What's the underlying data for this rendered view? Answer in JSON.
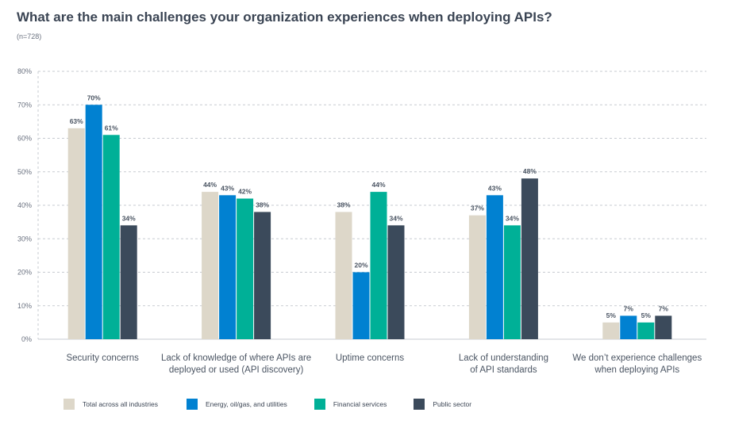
{
  "title": "What are the main challenges your organization experiences when deploying APIs?",
  "subtitle": "(n=728)",
  "chart_data": {
    "type": "bar",
    "title": "What are the main challenges your organization experiences when deploying APIs?",
    "xlabel": "",
    "ylabel": "",
    "ylim": [
      0,
      80
    ],
    "yticks": [
      "0%",
      "10%",
      "20%",
      "30%",
      "40%",
      "50%",
      "60%",
      "70%",
      "80%"
    ],
    "grid": true,
    "legend_position": "bottom",
    "categories": [
      [
        "Security concerns"
      ],
      [
        "Lack of knowledge of where APIs are",
        "deployed or used (API discovery)"
      ],
      [
        "Uptime concerns"
      ],
      [
        "Lack of understanding",
        "of API standards"
      ],
      [
        "We don’t experience challenges",
        "when deploying APIs"
      ]
    ],
    "series": [
      {
        "name": "Total across all industries",
        "color": "#ddd7c9",
        "values": [
          63,
          44,
          38,
          37,
          5
        ]
      },
      {
        "name": "Energy, oil/gas, and utilities",
        "color": "#0181d1",
        "values": [
          70,
          43,
          20,
          43,
          7
        ]
      },
      {
        "name": "Financial services",
        "color": "#00b097",
        "values": [
          61,
          42,
          44,
          34,
          5
        ]
      },
      {
        "name": "Public sector",
        "color": "#3b4a5b",
        "values": [
          34,
          38,
          34,
          48,
          7
        ]
      }
    ]
  }
}
